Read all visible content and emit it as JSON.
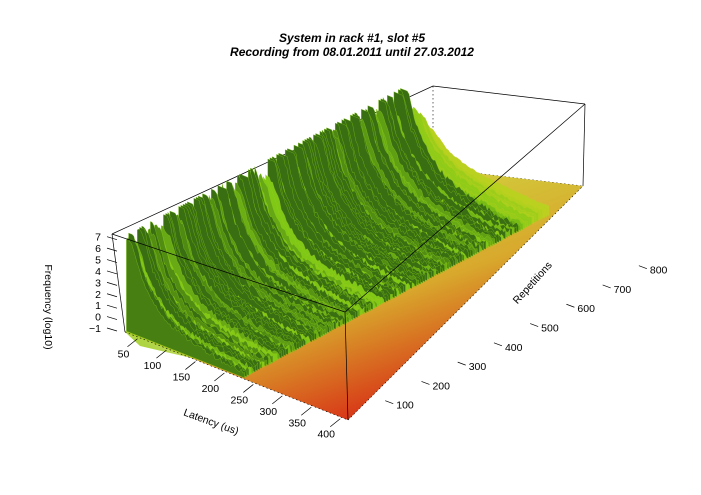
{
  "chart_data": {
    "type": "surface3d",
    "title": "System in rack #1, slot #5",
    "subtitle": "Recording from 08.01.2011 until 27.03.2012",
    "xlabel": "Latency (us)",
    "ylabel": "Repetitions",
    "zlabel": "Frequency (log10)",
    "x_ticks": [
      50,
      100,
      150,
      200,
      250,
      300,
      350,
      400
    ],
    "y_ticks": [
      100,
      200,
      300,
      400,
      500,
      600,
      700,
      800
    ],
    "z_ticks": [
      -1,
      0,
      1,
      2,
      3,
      4,
      5,
      6,
      7
    ],
    "xlim": [
      25,
      410
    ],
    "ylim": [
      0,
      850
    ],
    "zlim": [
      -1,
      7.5
    ],
    "grid": false,
    "legend": "none",
    "colors": {
      "peak_dark": "#3a6e12",
      "high": "#7fc816",
      "mid": "#b9d21e",
      "floor_yellow": "#d2c438",
      "floor_red": "#d83a18"
    },
    "profile": {
      "latency": [
        25,
        30,
        35,
        40,
        45,
        50,
        60,
        70,
        80,
        90,
        100,
        120,
        140,
        160,
        200,
        400
      ],
      "log10_frequency": [
        7.3,
        7.1,
        6.7,
        5.9,
        5.0,
        4.2,
        3.3,
        2.6,
        2.0,
        1.5,
        1.1,
        0.6,
        0.3,
        0.05,
        -0.4,
        -1.0
      ]
    }
  }
}
